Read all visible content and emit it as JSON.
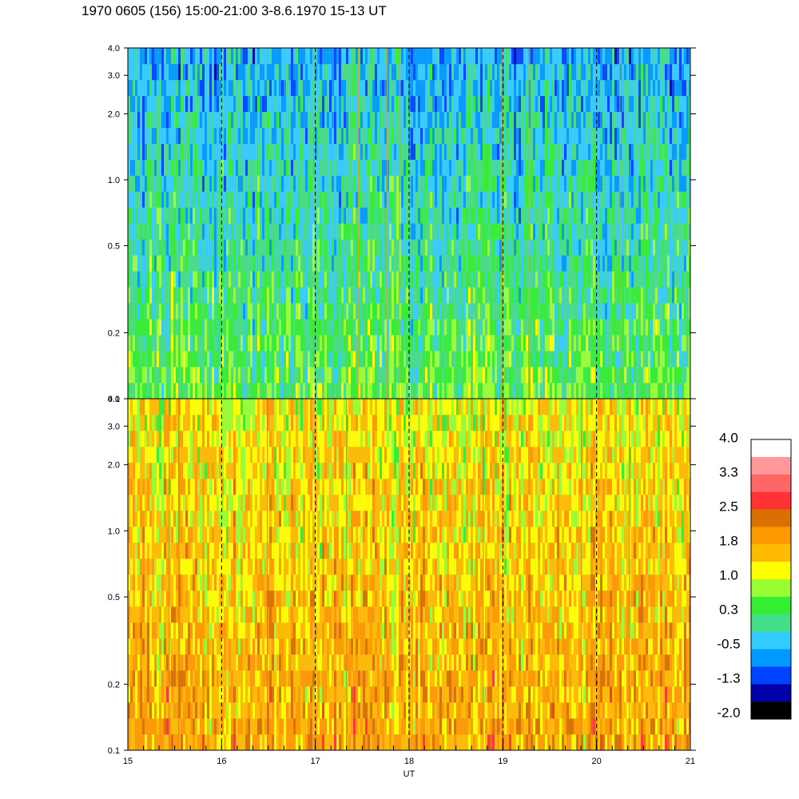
{
  "title": "1970 0605 (156) 15:00-21:00 3-8.6.1970  15-13 UT",
  "chart_data": {
    "type": "heatmap",
    "xlabel": "UT",
    "x_range": [
      15,
      21
    ],
    "x_tick_labels": [
      "15",
      "16",
      "17",
      "18",
      "19",
      "20",
      "21"
    ],
    "y_scale": "log",
    "y_range": [
      0.1,
      4.0
    ],
    "panels": [
      {
        "name": "upper",
        "y_tick_values": [
          0.1,
          0.2,
          0.5,
          1.0,
          2.0,
          3.0,
          4.0
        ],
        "y_tick_labels": [
          "0.1",
          "0.2",
          "0.5",
          "1.0",
          "2.0",
          "3.0",
          "4.0"
        ],
        "dominant_value_low_freq": 0.5,
        "dominant_value_high_freq": -0.5
      },
      {
        "name": "lower",
        "y_tick_values": [
          0.1,
          0.2,
          0.5,
          1.0,
          2.0,
          3.0,
          4.0
        ],
        "y_tick_labels": [
          "0.1",
          "0.2",
          "0.5",
          "1.0",
          "2.0",
          "3.0",
          "4.0"
        ],
        "dominant_value_low_freq": 1.8,
        "dominant_value_high_freq": 1.2
      }
    ],
    "dashed_vertical_lines_at": [
      16,
      17,
      18,
      19,
      20
    ],
    "colorbar": {
      "range": [
        -2.0,
        4.0
      ],
      "tick_labels": [
        "4.0",
        "3.3",
        "2.5",
        "1.8",
        "1.0",
        "0.3",
        "-0.5",
        "-1.3",
        "-2.0"
      ],
      "colors": [
        "#ffffff",
        "#ff9999",
        "#ff6666",
        "#ff3333",
        "#d97000",
        "#ff9900",
        "#ffbb00",
        "#ffff00",
        "#99ff33",
        "#33ee33",
        "#44dd88",
        "#33ccff",
        "#0099ff",
        "#0044ff",
        "#0000aa",
        "#000000"
      ]
    }
  }
}
